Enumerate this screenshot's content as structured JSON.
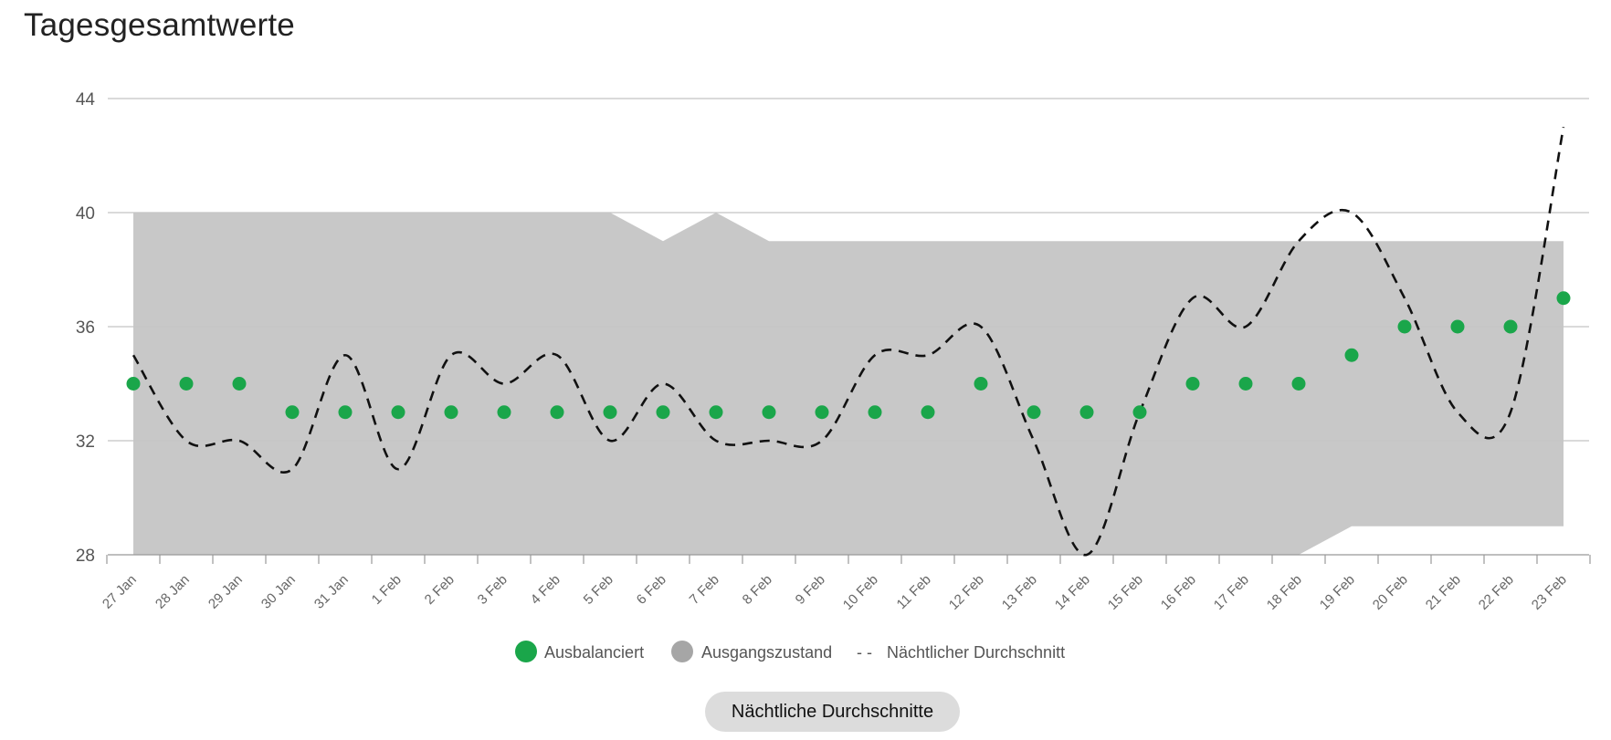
{
  "page": {
    "title": "Tagesgesamtwerte",
    "button_label": "Nächtliche Durchschnitte"
  },
  "legend": {
    "balanced": "Ausbalanciert",
    "baseline": "Ausgangszustand",
    "nightly": "Nächtlicher Durchschnitt",
    "nightly_marker": "- -"
  },
  "colors": {
    "balanced": "#1aa64a",
    "baseline_band": "#c8c8c8",
    "baseline_legend": "#a6a6a6",
    "nightly_line": "#111111",
    "grid": "#c4c4c4",
    "button_bg": "#dcdcdc"
  },
  "chart_data": {
    "type": "scatter",
    "title": "Tagesgesamtwerte",
    "xlabel": "",
    "ylabel": "",
    "ylim": [
      28,
      44
    ],
    "yticks": [
      28,
      32,
      36,
      40,
      44
    ],
    "grid": true,
    "legend_position": "bottom",
    "categories": [
      "27 Jan",
      "28 Jan",
      "29 Jan",
      "30 Jan",
      "31 Jan",
      "1 Feb",
      "2 Feb",
      "3 Feb",
      "4 Feb",
      "5 Feb",
      "6 Feb",
      "7 Feb",
      "8 Feb",
      "9 Feb",
      "10 Feb",
      "11 Feb",
      "12 Feb",
      "13 Feb",
      "14 Feb",
      "15 Feb",
      "16 Feb",
      "17 Feb",
      "18 Feb",
      "19 Feb",
      "20 Feb",
      "21 Feb",
      "22 Feb",
      "23 Feb"
    ],
    "series": [
      {
        "name": "Ausbalanciert",
        "type": "scatter",
        "values": [
          34,
          34,
          34,
          33,
          33,
          33,
          33,
          33,
          33,
          33,
          33,
          33,
          33,
          33,
          33,
          33,
          34,
          33,
          33,
          33,
          34,
          34,
          34,
          35,
          36,
          36,
          36,
          37
        ]
      },
      {
        "name": "Ausgangszustand",
        "type": "range-area",
        "lower": [
          28,
          28,
          28,
          28,
          28,
          28,
          28,
          28,
          28,
          28,
          28,
          28,
          28,
          28,
          28,
          28,
          28,
          28,
          28,
          28,
          28,
          28,
          28,
          29,
          29,
          29,
          29,
          29
        ],
        "upper": [
          40,
          40,
          40,
          40,
          40,
          40,
          40,
          40,
          40,
          40,
          39,
          40,
          39,
          39,
          39,
          39,
          39,
          39,
          39,
          39,
          39,
          39,
          39,
          39,
          39,
          39,
          39,
          39
        ]
      },
      {
        "name": "Nächtlicher Durchschnitt",
        "type": "line",
        "style": "dashed",
        "values": [
          35,
          32,
          32,
          31,
          35,
          31,
          35,
          34,
          35,
          32,
          34,
          32,
          32,
          32,
          35,
          35,
          36,
          32,
          28,
          33,
          37,
          36,
          39,
          40,
          37,
          33,
          33,
          43
        ]
      }
    ]
  }
}
